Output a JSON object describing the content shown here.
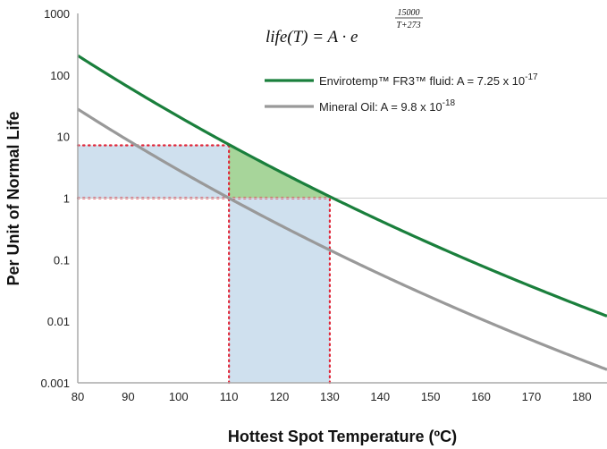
{
  "chart_data": {
    "type": "line",
    "xlabel": "Hottest Spot Temperature (ºC)",
    "ylabel": "Per Unit of Normal Life",
    "formula": {
      "lhs": "life(T) = A · e",
      "exp_num": "15000",
      "exp_den": "T+273"
    },
    "x_ticks": [
      "80",
      "90",
      "100",
      "110",
      "120",
      "130",
      "140",
      "150",
      "160",
      "170",
      "180"
    ],
    "y_ticks": [
      "0.001",
      "0.01",
      "0.1",
      "1",
      "10",
      "100",
      "1000"
    ],
    "xlim": [
      80,
      185
    ],
    "ylim": [
      0.001,
      1000
    ],
    "yscale": "log",
    "grid": false,
    "legend_position": "top-right",
    "exponent_B": 15000,
    "series": [
      {
        "name": "Envirotemp™ FR3™ fluid: A = 7.25 x 10",
        "name_exponent": "-17",
        "A": 7.25e-17,
        "color": "#1a7f3c",
        "x": [
          80,
          90,
          100,
          110,
          120,
          130,
          140,
          150,
          160,
          170,
          180,
          185
        ],
        "y": [
          200,
          62,
          21,
          7.2,
          2.6,
          1.0,
          0.38,
          0.16,
          0.067,
          0.029,
          0.013,
          0.0085
        ]
      },
      {
        "name": "Mineral Oil: A = 9.8 x 10",
        "name_exponent": "-18",
        "A": 9.8e-18,
        "color": "#999999",
        "x": [
          80,
          90,
          100,
          110,
          120,
          130,
          140,
          150,
          160,
          170,
          180,
          185
        ],
        "y": [
          27,
          8.4,
          2.8,
          0.98,
          0.35,
          0.13,
          0.052,
          0.021,
          0.009,
          0.0039,
          0.0018,
          0.0012
        ]
      }
    ],
    "reference_lines": [
      {
        "axis": "y",
        "value": 1,
        "color": "#cccccc"
      }
    ],
    "annotations": {
      "shaded_regions": [
        {
          "x": [
            80,
            110
          ],
          "y": [
            1,
            7.2
          ],
          "color": "#cfe0ee"
        },
        {
          "x": [
            110,
            130
          ],
          "y": [
            0.001,
            1
          ],
          "color": "#cfe0ee"
        }
      ],
      "highlight_region": {
        "x": [
          110,
          130
        ],
        "y_min": 1,
        "upper_series": 0,
        "color": "#a7d59a"
      },
      "dotted_lines": [
        {
          "points": [
            [
              80,
              7.2
            ],
            [
              110,
              7.2
            ]
          ]
        },
        {
          "points": [
            [
              80,
              1
            ],
            [
              130,
              1
            ]
          ]
        },
        {
          "points": [
            [
              110,
              0.001
            ],
            [
              110,
              7.2
            ]
          ]
        },
        {
          "points": [
            [
              130,
              0.001
            ],
            [
              130,
              1
            ]
          ]
        }
      ],
      "dotted_color": "#e0283a"
    }
  }
}
